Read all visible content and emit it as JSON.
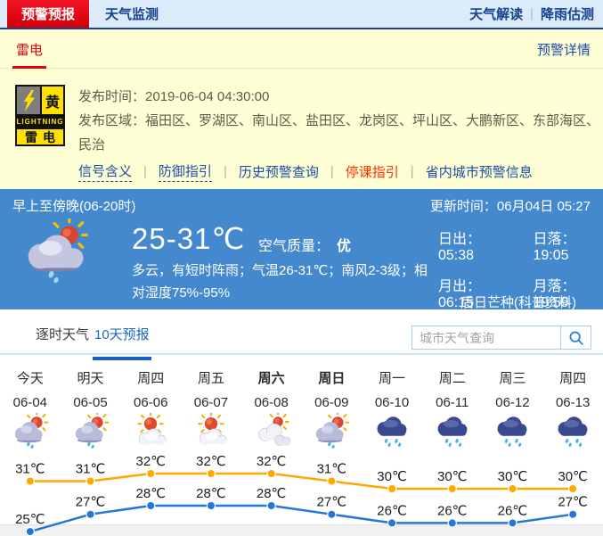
{
  "top_nav": {
    "tab_warning": "预警预报",
    "tab_monitor": "天气监测",
    "link_interpret": "天气解读",
    "link_rain_estimate": "降雨估测",
    "divider": "|"
  },
  "alert": {
    "active_tab": "雷电",
    "detail_link": "预警详情",
    "badge": {
      "color_label": "黄",
      "type_en": "LIGHTNING",
      "type_cn": "雷电"
    },
    "publish_time_label": "发布时间：",
    "publish_time": "2019-06-04 04:30:00",
    "region_label": "发布区域：",
    "regions": "福田区、罗湖区、南山区、盐田区、龙岗区、坪山区、大鹏新区、东部海区、民治",
    "links": [
      {
        "label": "信号含义"
      },
      {
        "label": "防御指引"
      },
      {
        "label": "历史预警查询"
      },
      {
        "label": "停课指引"
      },
      {
        "label": "省内城市预警信息"
      }
    ],
    "link_divider": "|"
  },
  "weather": {
    "period": "早上至傍晚(06-20时)",
    "update_time": "更新时间：06月04日 05:27",
    "icon": "hero-cloud-sun-rain",
    "temp_range": "25-31℃",
    "air_quality_label": "空气质量：",
    "air_quality": "优",
    "description": "多云，有短时阵雨；气温26-31℃；南风2-3级；相对湿度75%-95%",
    "sun_moon": [
      {
        "label": "日出：",
        "value": "05:38"
      },
      {
        "label": "日落：",
        "value": "19:05"
      },
      {
        "label": "月出：",
        "value": "06:15"
      },
      {
        "label": "月落：",
        "value": "19:59"
      }
    ],
    "solar_term": "后日芒种(科普资料)"
  },
  "forecast": {
    "tab_hourly": "逐时天气",
    "tab_tenday": "10天预报",
    "search": {
      "placeholder": "城市天气查询"
    },
    "days": [
      {
        "day": "今天",
        "date": "06-04",
        "icon": "cloud-sun-rain"
      },
      {
        "day": "明天",
        "date": "06-05",
        "icon": "cloud-sun-rain"
      },
      {
        "day": "周四",
        "date": "06-06",
        "icon": "sun-cloud"
      },
      {
        "day": "周五",
        "date": "06-07",
        "icon": "sun-cloud"
      },
      {
        "day": "周六",
        "date": "06-08",
        "icon": "sun-clouds"
      },
      {
        "day": "周日",
        "date": "06-09",
        "icon": "cloud-sun-rain"
      },
      {
        "day": "周一",
        "date": "06-10",
        "icon": "rain"
      },
      {
        "day": "周二",
        "date": "06-11",
        "icon": "rain"
      },
      {
        "day": "周三",
        "date": "06-12",
        "icon": "rain"
      },
      {
        "day": "周四",
        "date": "06-13",
        "icon": "rain"
      }
    ]
  },
  "chart_data": {
    "type": "line",
    "unit": "℃",
    "categories": [
      "06-04",
      "06-05",
      "06-06",
      "06-07",
      "06-08",
      "06-09",
      "06-10",
      "06-11",
      "06-12",
      "06-13"
    ],
    "series": [
      {
        "name": "high",
        "color": "#ffa800",
        "values": [
          31,
          31,
          32,
          32,
          32,
          31,
          30,
          30,
          30,
          30
        ]
      },
      {
        "name": "low",
        "color": "#2377d8",
        "values": [
          25,
          27,
          28,
          28,
          28,
          27,
          26,
          26,
          26,
          27
        ]
      }
    ],
    "ylim_high": [
      30,
      32
    ],
    "ylim_low": [
      25,
      28
    ],
    "legend": false,
    "grid": false
  }
}
